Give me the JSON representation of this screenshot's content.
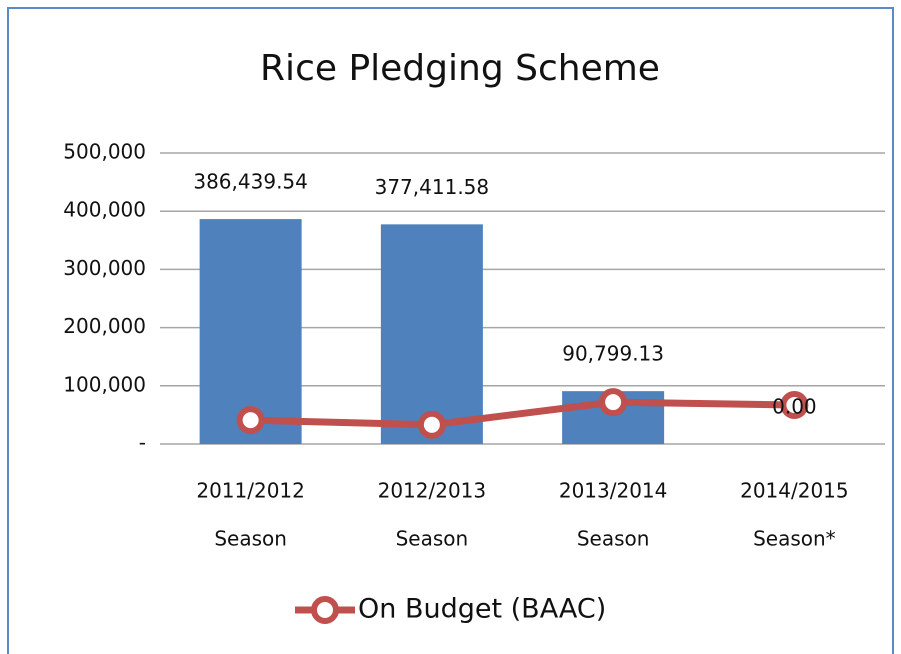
{
  "chart_data": {
    "type": "bar_line",
    "title": "Rice Pledging Scheme",
    "categories": [
      [
        "2011/2012",
        "Season"
      ],
      [
        "2012/2013",
        "Season"
      ],
      [
        "2013/2014",
        "Season"
      ],
      [
        "2014/2015",
        "Season*"
      ]
    ],
    "series": [
      {
        "type": "bar",
        "color": "#4f81bd",
        "values": [
          386439.54,
          377411.58,
          90799.13,
          0
        ],
        "value_labels": [
          "386,439.54",
          "377,411.58",
          "90,799.13",
          "0.00"
        ]
      },
      {
        "type": "line",
        "name": "On Budget (BAAC)",
        "color": "#c0504d",
        "values": [
          41000,
          33000,
          72000,
          67000
        ]
      }
    ],
    "ylim": [
      0,
      500000
    ],
    "yticks": [
      {
        "value": 0,
        "label": "-"
      },
      {
        "value": 100000,
        "label": "100,000"
      },
      {
        "value": 200000,
        "label": "200,000"
      },
      {
        "value": 300000,
        "label": "300,000"
      },
      {
        "value": 400000,
        "label": "400,000"
      },
      {
        "value": 500000,
        "label": "500,000"
      }
    ],
    "grid": true,
    "legend": "bottom"
  }
}
